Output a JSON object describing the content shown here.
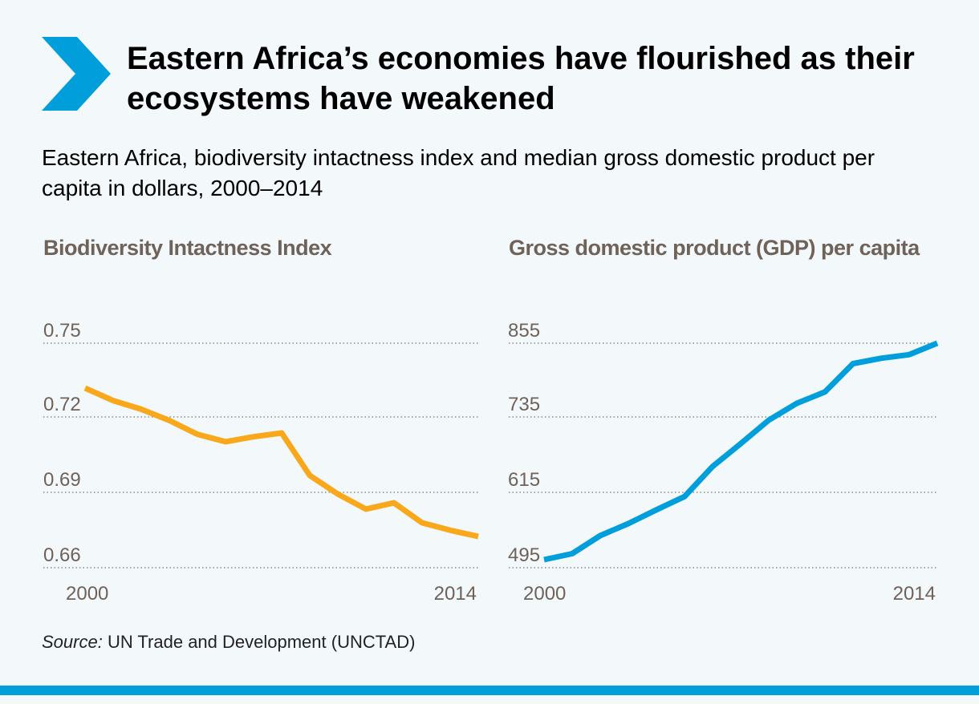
{
  "header": {
    "title": "Eastern Africa’s economies have flourished as their ecosystems have weakened",
    "subtitle": "Eastern Africa, biodiversity intactness index and median gross domestic product per capita in dollars, 2000–2014",
    "accent_color": "#009edb",
    "icon": "chevron-right-icon"
  },
  "chart_data": [
    {
      "type": "line",
      "title": "Biodiversity Intactness Index",
      "x": [
        2000,
        2001,
        2002,
        2003,
        2004,
        2005,
        2006,
        2007,
        2008,
        2009,
        2010,
        2011,
        2012,
        2013,
        2014
      ],
      "x_tick_labels": [
        "2000",
        "2014"
      ],
      "y_ticks": [
        "0.75",
        "0.72",
        "0.69",
        "0.66"
      ],
      "ylim": [
        0.66,
        0.75
      ],
      "series": [
        {
          "values": [
            0.732,
            0.727,
            0.7235,
            0.719,
            0.7135,
            0.7105,
            0.7125,
            0.714,
            0.697,
            0.6895,
            0.6835,
            0.686,
            0.678,
            0.675,
            0.6725
          ],
          "color": "#f8a81a"
        }
      ],
      "grid": "horizontal-dotted"
    },
    {
      "type": "line",
      "title": "Gross domestic product (GDP) per capita",
      "x": [
        2000,
        2001,
        2002,
        2003,
        2004,
        2005,
        2006,
        2007,
        2008,
        2009,
        2010,
        2011,
        2012,
        2013,
        2014
      ],
      "x_tick_labels": [
        "2000",
        "2014"
      ],
      "y_ticks": [
        "855",
        "735",
        "615",
        "495"
      ],
      "ylim": [
        495,
        855
      ],
      "series": [
        {
          "values": [
            495,
            505,
            535,
            555,
            578,
            600,
            650,
            688,
            727,
            755,
            774,
            821,
            830,
            836,
            855
          ],
          "color": "#009edb"
        }
      ],
      "grid": "horizontal-dotted"
    }
  ],
  "footer": {
    "source_label": "Source:",
    "source_text": " UN Trade and Development (UNCTAD)"
  }
}
